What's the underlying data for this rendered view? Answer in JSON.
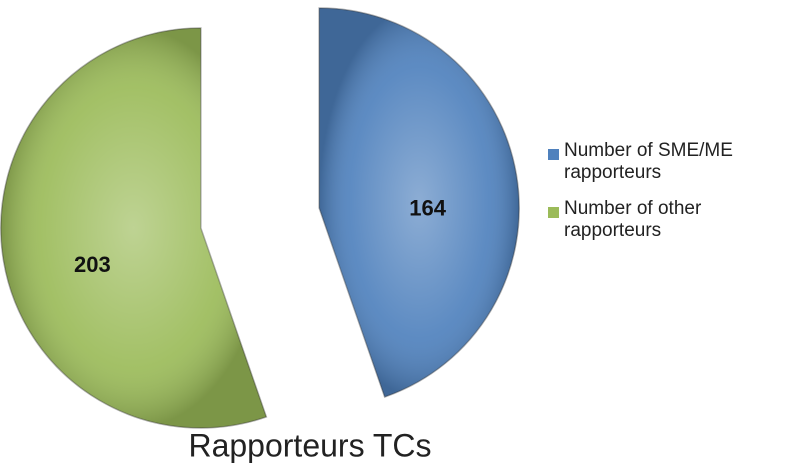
{
  "chart_data": {
    "type": "pie",
    "title": "Rapporteurs TCs",
    "categories": [
      "Number of SME/ME rapporteurs",
      "Number of other rapporteurs"
    ],
    "values": [
      164,
      203
    ],
    "colors": [
      "#4f81bd",
      "#9bbb59"
    ],
    "legend": "right"
  }
}
